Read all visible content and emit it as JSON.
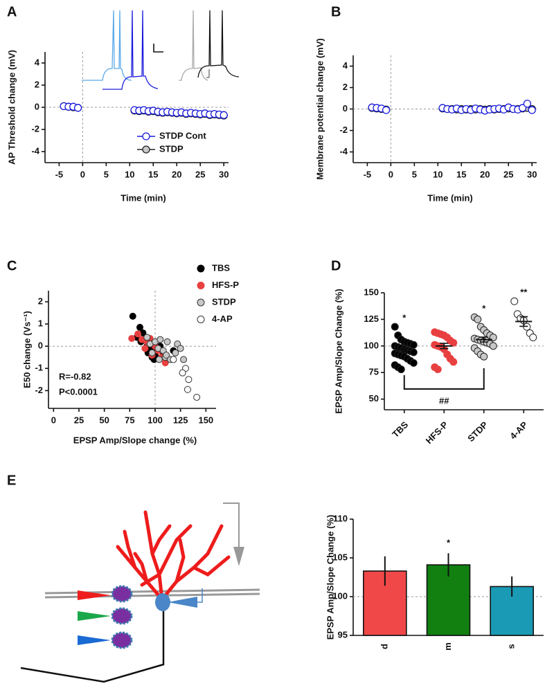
{
  "chart_data": [
    {
      "panel": "A",
      "type": "line",
      "x_label": "Time (min)",
      "y_label": "AP Threshold change (mV)",
      "x": [
        -4,
        -3,
        -2,
        -1,
        11,
        12,
        13,
        14,
        15,
        16,
        17,
        18,
        19,
        20,
        21,
        22,
        23,
        24,
        25,
        26,
        27,
        28,
        29,
        30
      ],
      "series": [
        {
          "name": "STDP Cont",
          "color": "#1a1adc",
          "fill": "#ffffff",
          "values": [
            0.1,
            0.05,
            0.05,
            -0.05,
            -0.25,
            -0.3,
            -0.25,
            -0.35,
            -0.3,
            -0.4,
            -0.45,
            -0.4,
            -0.45,
            -0.5,
            -0.45,
            -0.55,
            -0.5,
            -0.55,
            -0.6,
            -0.55,
            -0.65,
            -0.6,
            -0.65,
            -0.7
          ]
        },
        {
          "name": "STDP",
          "color": "#222222",
          "fill": "#c8c8c8",
          "values": [
            0.1,
            0.05,
            0.0,
            -0.05,
            -0.3,
            -0.35,
            -0.3,
            -0.4,
            -0.35,
            -0.45,
            -0.5,
            -0.45,
            -0.5,
            -0.55,
            -0.5,
            -0.6,
            -0.55,
            -0.6,
            -0.65,
            -0.6,
            -0.7,
            -0.65,
            -0.7,
            -0.75
          ]
        }
      ],
      "xlim": [
        -8,
        31
      ],
      "xticks": [
        -5,
        0,
        5,
        10,
        15,
        20,
        25,
        30
      ],
      "ylim": [
        -5,
        5
      ],
      "yticks": [
        -4,
        -2,
        0,
        2,
        4
      ],
      "reference_x": 0,
      "reference_y": 0
    },
    {
      "panel": "B",
      "type": "line",
      "x_label": "Time (min)",
      "y_label": "Membrane potential change (mV)",
      "x": [
        -4,
        -3,
        -2,
        -1,
        11,
        12,
        13,
        14,
        15,
        16,
        17,
        18,
        19,
        20,
        21,
        22,
        23,
        24,
        25,
        26,
        27,
        28,
        29,
        30
      ],
      "series": [
        {
          "color": "#1a1adc",
          "fill": "#ffffff",
          "values": [
            0.15,
            0.1,
            0.05,
            -0.1,
            0.1,
            0.0,
            -0.05,
            0.05,
            -0.1,
            0.0,
            -0.1,
            0.05,
            -0.05,
            -0.15,
            -0.05,
            0.0,
            0.05,
            -0.05,
            0.15,
            0.0,
            -0.05,
            0.1,
            0.5,
            -0.1
          ]
        },
        {
          "color": "#222222",
          "fill": "#c8c8c8",
          "values": [
            0.1,
            0.05,
            0.0,
            -0.05,
            0.05,
            0.0,
            0.0,
            -0.05,
            0.0,
            -0.05,
            0.0,
            -0.05,
            0.0,
            -0.05,
            0.0,
            -0.05,
            0.0,
            0.0,
            0.05,
            0.0,
            0.0,
            0.05,
            0.1,
            0.0
          ]
        }
      ],
      "xlim": [
        -8,
        31
      ],
      "xticks": [
        -5,
        0,
        5,
        10,
        15,
        20,
        25,
        30
      ],
      "ylim": [
        -5,
        5
      ],
      "yticks": [
        -4,
        -2,
        0,
        2,
        4
      ],
      "reference_x": 0,
      "reference_y": 0
    },
    {
      "panel": "C",
      "type": "scatter",
      "x_label": "EPSP Amp/Slope change (%)",
      "y_label": "E50 change (Vs⁻¹)",
      "annotations": [
        "R=-0.82",
        "P<0.0001"
      ],
      "series": [
        {
          "name": "TBS",
          "color": "#000000",
          "fill": "#000000",
          "x": [
            78,
            85,
            88,
            82,
            86,
            90,
            92,
            95,
            93,
            97,
            100,
            102,
            105,
            108,
            96,
            118,
            99
          ],
          "values": [
            1.35,
            0.85,
            0.6,
            0.4,
            0.2,
            0.3,
            0.0,
            -0.2,
            -0.3,
            -0.5,
            -0.4,
            -0.1,
            0.0,
            -0.3,
            -0.1,
            -0.2,
            -0.6
          ]
        },
        {
          "name": "HFS-P",
          "color": "#e84040",
          "fill": "#e84040",
          "x": [
            77,
            83,
            87,
            92,
            95,
            98,
            100,
            103,
            106,
            110,
            90,
            97
          ],
          "values": [
            0.35,
            0.55,
            0.3,
            0.2,
            0.35,
            0.1,
            0.0,
            -0.2,
            -0.5,
            -0.75,
            -0.1,
            -0.4
          ]
        },
        {
          "name": "STDP",
          "color": "#333333",
          "fill": "#c8c8c8",
          "x": [
            92,
            95,
            100,
            103,
            105,
            108,
            110,
            112,
            115,
            120,
            122,
            125,
            128,
            97,
            104,
            111
          ],
          "values": [
            0.4,
            0.1,
            0.2,
            -0.1,
            0.3,
            -0.2,
            -0.5,
            0.2,
            -0.6,
            -0.3,
            0.1,
            -0.1,
            -0.6,
            -0.3,
            -0.6,
            -0.4
          ]
        },
        {
          "name": "4-AP",
          "color": "#333333",
          "fill": "#ffffff",
          "x": [
            130,
            133,
            127,
            132,
            141,
            118
          ],
          "values": [
            -1.0,
            -1.5,
            -1.2,
            -1.95,
            -2.3,
            -0.6
          ]
        }
      ],
      "xlim": [
        -5,
        160
      ],
      "xticks": [
        0,
        25,
        50,
        75,
        100,
        125,
        150
      ],
      "ylim": [
        -2.8,
        2.5
      ],
      "yticks": [
        -2,
        -1,
        0,
        1,
        2
      ],
      "reference_x": 100,
      "reference_y": 0
    },
    {
      "panel": "D",
      "type": "dot",
      "y_label": "EPSP Amp/Slope Change (%)",
      "categories": [
        "TBS",
        "HFS-P",
        "STDP",
        "4-AP"
      ],
      "colors": [
        "#000000",
        "#e84040",
        "#c8c8c8",
        "#ffffff"
      ],
      "values": [
        [
          118,
          110,
          106,
          104,
          103,
          102,
          101,
          100,
          99,
          98,
          97,
          96,
          95,
          94,
          93,
          92,
          91,
          90,
          88,
          86,
          84,
          82,
          80,
          78
        ],
        [
          113,
          112,
          111,
          110,
          108,
          105,
          103,
          101,
          100,
          99,
          97,
          92,
          88,
          85,
          80,
          78
        ],
        [
          127,
          125,
          118,
          115,
          112,
          110,
          108,
          107,
          106,
          105,
          104,
          103,
          102,
          100,
          98,
          95,
          92,
          90
        ],
        [
          142,
          130,
          126,
          124,
          118,
          112,
          108
        ]
      ],
      "mean": [
        96,
        100,
        106,
        123
      ],
      "sem": [
        2.2,
        2.5,
        2.3,
        4.5
      ],
      "annotations": [
        "*",
        null,
        "*",
        "**"
      ],
      "bracket_label": "##",
      "ylim": [
        40,
        150
      ],
      "yticks": [
        50,
        75,
        100,
        125,
        150
      ],
      "reference_y": 100
    },
    {
      "panel": "E",
      "type": "bar",
      "y_label": "EPSP Amp/Slope Change (%)",
      "categories": [
        "d",
        "m",
        "s"
      ],
      "values": [
        103.3,
        104.1,
        101.3
      ],
      "errors": [
        1.9,
        1.5,
        1.3
      ],
      "colors": [
        "#f04848",
        "#118011",
        "#1a9ab5"
      ],
      "annotations": [
        null,
        "*",
        null
      ],
      "ylim": [
        95,
        110
      ],
      "yticks": [
        95,
        100,
        105,
        110
      ],
      "reference_y": 100
    }
  ]
}
